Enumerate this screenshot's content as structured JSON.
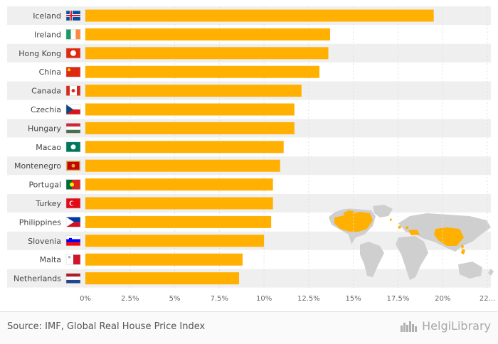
{
  "chart_data": {
    "type": "bar",
    "orientation": "horizontal",
    "categories": [
      "Iceland",
      "Ireland",
      "Hong Kong",
      "China",
      "Canada",
      "Czechia",
      "Hungary",
      "Macao",
      "Montenegro",
      "Portugal",
      "Turkey",
      "Philippines",
      "Slovenia",
      "Malta",
      "Netherlands"
    ],
    "values": [
      19.5,
      13.7,
      13.6,
      13.1,
      12.1,
      11.7,
      11.7,
      11.1,
      10.9,
      10.5,
      10.5,
      10.4,
      10.0,
      8.8,
      8.6
    ],
    "xlim": [
      0,
      22.5
    ],
    "x_ticks": [
      "0%",
      "2.5%",
      "5%",
      "7.5%",
      "10%",
      "12.5%",
      "15%",
      "17.5%",
      "20%",
      "22..."
    ],
    "bar_color": "#ffb000",
    "row_band_color": "#efefef",
    "flags": [
      "flag-iceland-icon",
      "flag-ireland-icon",
      "flag-hong-kong-icon",
      "flag-china-icon",
      "flag-canada-icon",
      "flag-czechia-icon",
      "flag-hungary-icon",
      "flag-macao-icon",
      "flag-montenegro-icon",
      "flag-portugal-icon",
      "flag-turkey-icon",
      "flag-philippines-icon",
      "flag-slovenia-icon",
      "flag-malta-icon",
      "flag-netherlands-icon"
    ],
    "grid": true
  },
  "map": {
    "icon": "world-map-icon",
    "highlight_color": "#ffb000",
    "base_color": "#cfcfcf"
  },
  "footer": {
    "source": "Source: IMF, Global Real House Price Index",
    "brand": "HelgiLibrary",
    "brand_icon": "skyline-logo-icon"
  }
}
